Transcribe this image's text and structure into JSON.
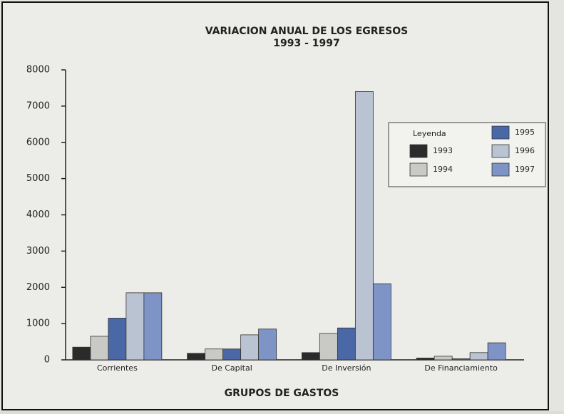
{
  "chart_data": {
    "type": "bar",
    "title": "VARIACION ANUAL DE LOS EGRESOS",
    "subtitle": "1993 - 1997",
    "x_label": "GRUPOS DE GASTOS",
    "categories": [
      "Corrientes",
      "De Capital",
      "De Inversión",
      "De Financiamiento"
    ],
    "series": [
      {
        "name": "1993",
        "color": "#2b2b2b",
        "values": [
          350,
          180,
          200,
          50
        ]
      },
      {
        "name": "1994",
        "color": "#c9c9c6",
        "values": [
          650,
          300,
          730,
          100
        ]
      },
      {
        "name": "1995",
        "color": "#4a67a6",
        "values": [
          1150,
          300,
          880,
          30
        ]
      },
      {
        "name": "1996",
        "color": "#b9c3d2",
        "values": [
          1850,
          690,
          7400,
          200
        ]
      },
      {
        "name": "1997",
        "color": "#7e94c6",
        "values": [
          1850,
          850,
          2100,
          470
        ]
      }
    ],
    "legend_title": "Leyenda",
    "legend": "upper right",
    "ylim": [
      0,
      8000
    ],
    "yticks": [
      0,
      1000,
      2000,
      3000,
      4000,
      5000,
      6000,
      7000,
      8000
    ],
    "grid": false
  }
}
